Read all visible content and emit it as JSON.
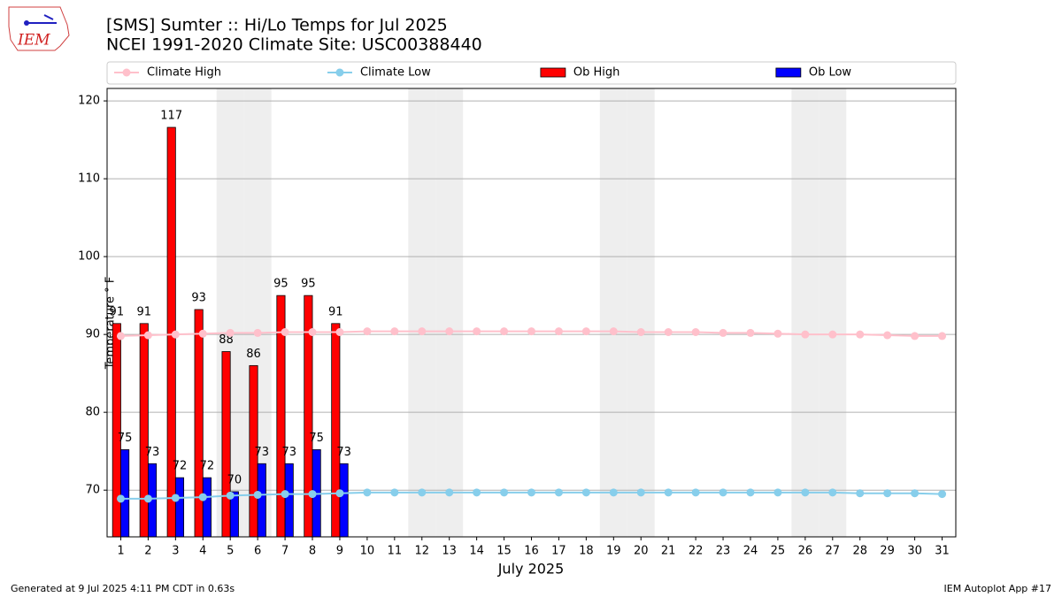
{
  "chart_data": {
    "type": "bar",
    "title": "[SMS] Sumter :: Hi/Lo Temps for Jul 2025",
    "subtitle": "NCEI 1991-2020 Climate Site: USC00388440",
    "xlabel": "July 2025",
    "ylabel": "Temperature ° F",
    "logo_text": "IEM",
    "footer_left": "Generated at 9 Jul 2025 4:11 PM CDT in 0.63s",
    "footer_right": "IEM Autoplot App #17",
    "categories": [
      "1",
      "2",
      "3",
      "4",
      "5",
      "6",
      "7",
      "8",
      "9",
      "10",
      "11",
      "12",
      "13",
      "14",
      "15",
      "16",
      "17",
      "18",
      "19",
      "20",
      "21",
      "22",
      "23",
      "24",
      "25",
      "26",
      "27",
      "28",
      "29",
      "30",
      "31"
    ],
    "shaded_days": [
      "5",
      "6",
      "12",
      "13",
      "19",
      "20",
      "26",
      "27"
    ],
    "shade_color": "#eeeeee",
    "ylim": [
      64,
      121.6
    ],
    "yticks": [
      70,
      80,
      90,
      100,
      110,
      120
    ],
    "grid": true,
    "series": [
      {
        "name": "Climate High",
        "type": "line",
        "color": "#ffc0cb",
        "values": [
          89.8,
          89.9,
          90.0,
          90.1,
          90.2,
          90.2,
          90.3,
          90.3,
          90.3,
          90.4,
          90.4,
          90.4,
          90.4,
          90.4,
          90.4,
          90.4,
          90.4,
          90.4,
          90.4,
          90.3,
          90.3,
          90.3,
          90.2,
          90.2,
          90.1,
          90.0,
          90.0,
          90.0,
          89.9,
          89.8,
          89.8
        ]
      },
      {
        "name": "Climate Low",
        "type": "line",
        "color": "#87ceeb",
        "values": [
          68.9,
          68.9,
          69.0,
          69.1,
          69.3,
          69.4,
          69.5,
          69.5,
          69.6,
          69.7,
          69.7,
          69.7,
          69.7,
          69.7,
          69.7,
          69.7,
          69.7,
          69.7,
          69.7,
          69.7,
          69.7,
          69.7,
          69.7,
          69.7,
          69.7,
          69.7,
          69.7,
          69.6,
          69.6,
          69.6,
          69.5
        ]
      },
      {
        "name": "Ob High",
        "type": "bar",
        "color": "#ff0000",
        "values": [
          91.4,
          91.4,
          116.6,
          93.2,
          87.8,
          86.0,
          95.0,
          95.0,
          91.4,
          null,
          null,
          null,
          null,
          null,
          null,
          null,
          null,
          null,
          null,
          null,
          null,
          null,
          null,
          null,
          null,
          null,
          null,
          null,
          null,
          null,
          null
        ],
        "value_labels": [
          "91",
          "91",
          "117",
          "93",
          "88",
          "86",
          "95",
          "95",
          "91",
          null,
          null,
          null,
          null,
          null,
          null,
          null,
          null,
          null,
          null,
          null,
          null,
          null,
          null,
          null,
          null,
          null,
          null,
          null,
          null,
          null,
          null
        ]
      },
      {
        "name": "Ob Low",
        "type": "bar",
        "color": "#0000ff",
        "values": [
          75.2,
          73.4,
          71.6,
          71.6,
          69.8,
          73.4,
          73.4,
          75.2,
          73.4,
          null,
          null,
          null,
          null,
          null,
          null,
          null,
          null,
          null,
          null,
          null,
          null,
          null,
          null,
          null,
          null,
          null,
          null,
          null,
          null,
          null,
          null
        ],
        "value_labels": [
          "75",
          "73",
          "72",
          "72",
          "70",
          "73",
          "73",
          "75",
          "73",
          null,
          null,
          null,
          null,
          null,
          null,
          null,
          null,
          null,
          null,
          null,
          null,
          null,
          null,
          null,
          null,
          null,
          null,
          null,
          null,
          null,
          null
        ]
      }
    ]
  }
}
